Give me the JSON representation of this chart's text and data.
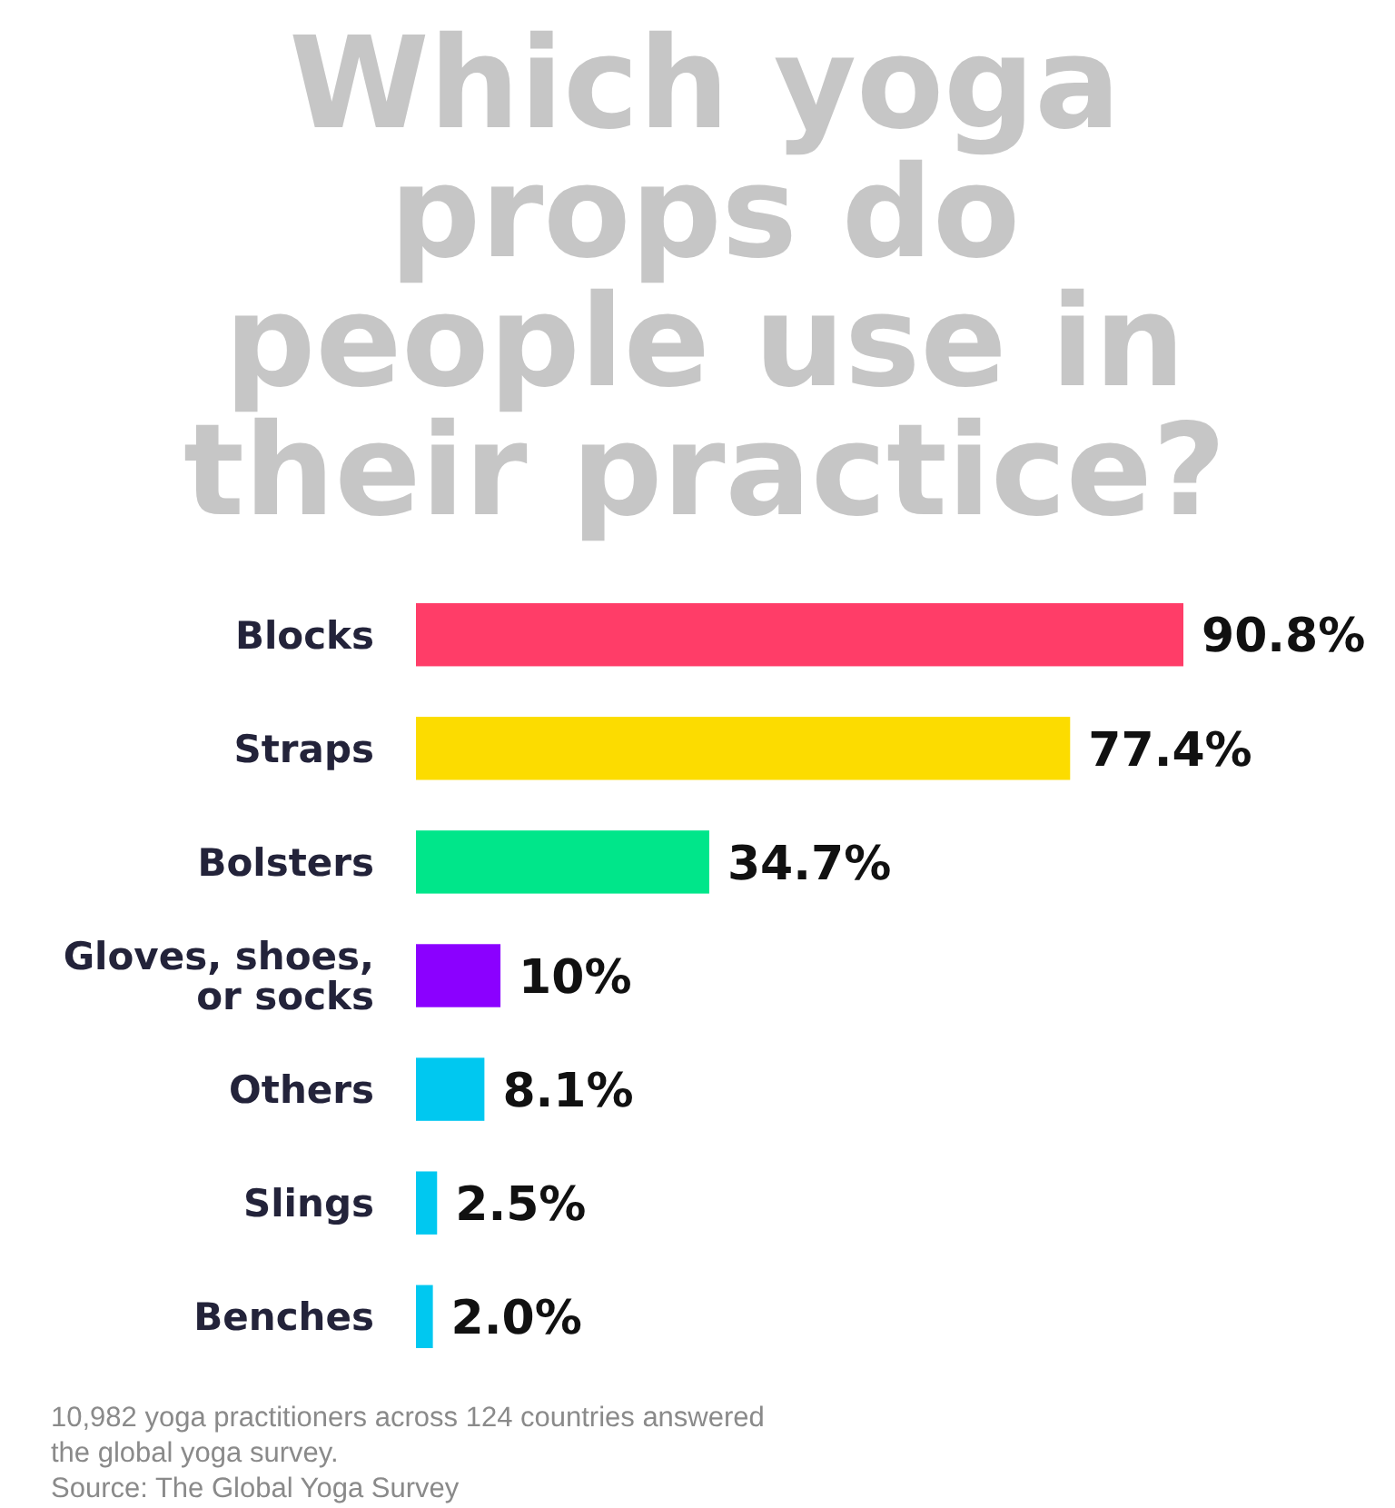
{
  "chart_data": {
    "type": "bar",
    "orientation": "horizontal",
    "title": "Which yoga props do people use in their practice?",
    "categories": [
      "Blocks",
      "Straps",
      "Bolsters",
      "Gloves, shoes, or socks",
      "Others",
      "Slings",
      "Benches"
    ],
    "values": [
      90.8,
      77.4,
      34.7,
      10,
      8.1,
      2.5,
      2.0
    ],
    "colors": [
      "#ff3d68",
      "#fcdc00",
      "#00e68a",
      "#8b00ff",
      "#00c8f0",
      "#00c8f0",
      "#00c8f0"
    ],
    "value_labels": [
      "90.8%",
      "77.4%",
      "34.7%",
      "10%",
      "8.1%",
      "2.5%",
      "2.0%"
    ],
    "annotations": [
      "10,982 yoga practitioners across 124 countries answered the global yoga survey.",
      "Source: The Global Yoga Survey"
    ]
  }
}
